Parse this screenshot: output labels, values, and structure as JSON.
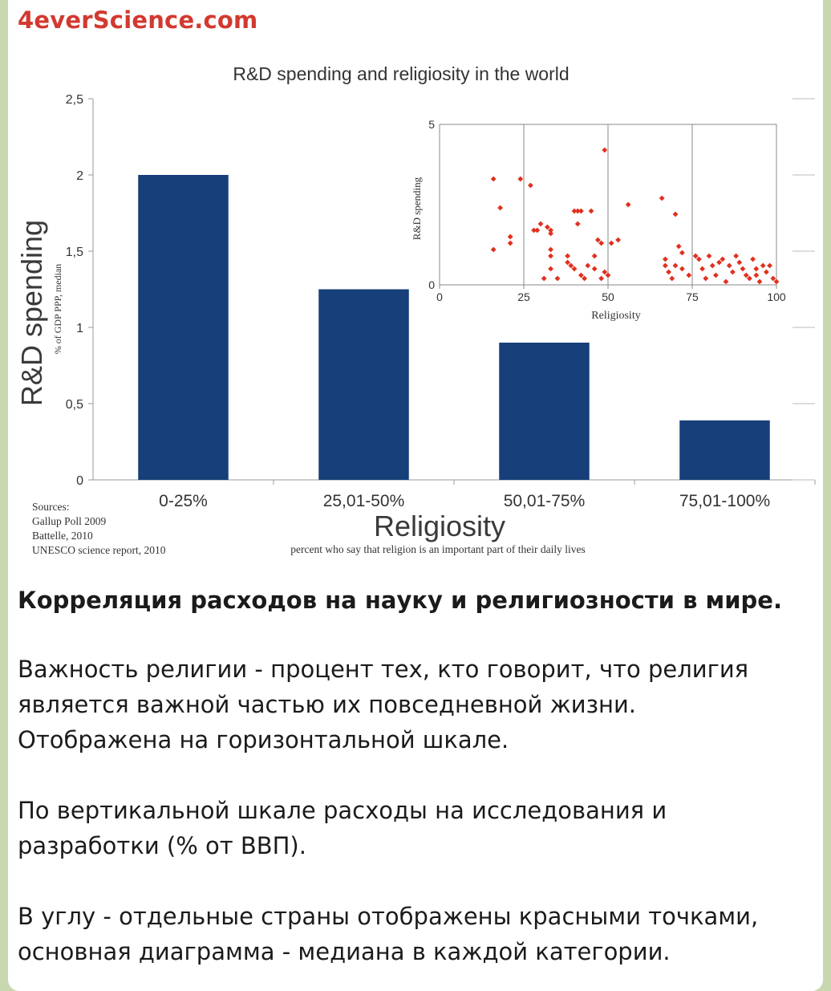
{
  "channel": {
    "name": "4everScience.com"
  },
  "chart_data": {
    "type": "bar",
    "title": "R&D spending and religiosity in the world",
    "ylabel": "R&D spending",
    "ylabel_sub": "% of GDP PPP, median",
    "xlabel": "Religiosity",
    "xlabel_sub": "percent who say that religion is an important part of their daily lives",
    "categories": [
      "0-25%",
      "25,01-50%",
      "50,01-75%",
      "75,01-100%"
    ],
    "values": [
      2.0,
      1.25,
      0.9,
      0.39
    ],
    "ylim": [
      0,
      2.5
    ],
    "yticks": [
      "0",
      "0,5",
      "1",
      "1,5",
      "2",
      "2,5"
    ],
    "bar_color": "#173f7a",
    "sources": [
      "Sources:",
      "Gallup Poll 2009",
      "Battelle, 2010",
      "UNESCO science report, 2010"
    ],
    "inset": {
      "type": "scatter",
      "xlabel": "Religiosity",
      "ylabel": "R&D spending",
      "xlim": [
        0,
        100
      ],
      "ylim": [
        0,
        5
      ],
      "xticks": [
        "0",
        "25",
        "50",
        "75",
        "100"
      ],
      "yticks": [
        "0",
        "5"
      ],
      "point_color": "#e0301e",
      "points": [
        [
          16,
          3.3
        ],
        [
          16,
          1.1
        ],
        [
          18,
          2.4
        ],
        [
          21,
          1.5
        ],
        [
          21,
          1.3
        ],
        [
          24,
          3.3
        ],
        [
          27,
          3.1
        ],
        [
          28,
          1.7
        ],
        [
          29,
          1.7
        ],
        [
          30,
          1.9
        ],
        [
          31,
          0.2
        ],
        [
          32,
          1.8
        ],
        [
          33,
          1.7
        ],
        [
          33,
          1.6
        ],
        [
          33,
          1.1
        ],
        [
          33,
          0.9
        ],
        [
          33,
          0.5
        ],
        [
          35,
          0.2
        ],
        [
          38,
          0.9
        ],
        [
          38,
          0.7
        ],
        [
          39,
          0.6
        ],
        [
          40,
          2.3
        ],
        [
          40,
          0.5
        ],
        [
          41,
          2.3
        ],
        [
          41,
          1.9
        ],
        [
          42,
          2.3
        ],
        [
          42,
          0.3
        ],
        [
          43,
          0.2
        ],
        [
          44,
          0.6
        ],
        [
          45,
          2.3
        ],
        [
          46,
          0.9
        ],
        [
          46,
          0.5
        ],
        [
          47,
          1.4
        ],
        [
          48,
          0.2
        ],
        [
          48,
          1.3
        ],
        [
          49,
          4.2
        ],
        [
          49,
          0.4
        ],
        [
          50,
          0.3
        ],
        [
          51,
          1.3
        ],
        [
          53,
          1.4
        ],
        [
          56,
          2.5
        ],
        [
          66,
          2.7
        ],
        [
          67,
          0.8
        ],
        [
          67,
          0.6
        ],
        [
          68,
          0.4
        ],
        [
          69,
          0.2
        ],
        [
          70,
          2.2
        ],
        [
          70,
          0.6
        ],
        [
          71,
          1.2
        ],
        [
          72,
          1.0
        ],
        [
          72,
          0.5
        ],
        [
          74,
          0.3
        ],
        [
          76,
          0.9
        ],
        [
          77,
          0.8
        ],
        [
          78,
          0.5
        ],
        [
          79,
          0.2
        ],
        [
          80,
          0.9
        ],
        [
          81,
          0.6
        ],
        [
          82,
          0.3
        ],
        [
          83,
          0.7
        ],
        [
          84,
          0.8
        ],
        [
          85,
          0.1
        ],
        [
          86,
          0.6
        ],
        [
          87,
          0.4
        ],
        [
          88,
          0.9
        ],
        [
          89,
          0.7
        ],
        [
          90,
          0.5
        ],
        [
          91,
          0.3
        ],
        [
          92,
          0.2
        ],
        [
          93,
          0.8
        ],
        [
          94,
          0.5
        ],
        [
          94,
          0.3
        ],
        [
          95,
          0.1
        ],
        [
          96,
          0.6
        ],
        [
          97,
          0.4
        ],
        [
          98,
          0.6
        ],
        [
          99,
          0.2
        ],
        [
          100,
          0.1
        ]
      ]
    }
  },
  "caption": {
    "title": "Корреляция расходов на науку и религиозности в мире.",
    "p1_l1": "Важность религии - процент тех, кто говорит, что религия",
    "p1_l2": "является важной частью их повседневной жизни.",
    "p1_l3": "Отображена на горизонтальной шкале.",
    "p2_l1": "По вертикальной шкале расходы на исследования и",
    "p2_l2": "разработки (% от ВВП).",
    "p3_l1": "В углу - отдельные страны отображены красными точками,",
    "p3_l2": "основная диаграмма - медиана в каждой категории."
  }
}
